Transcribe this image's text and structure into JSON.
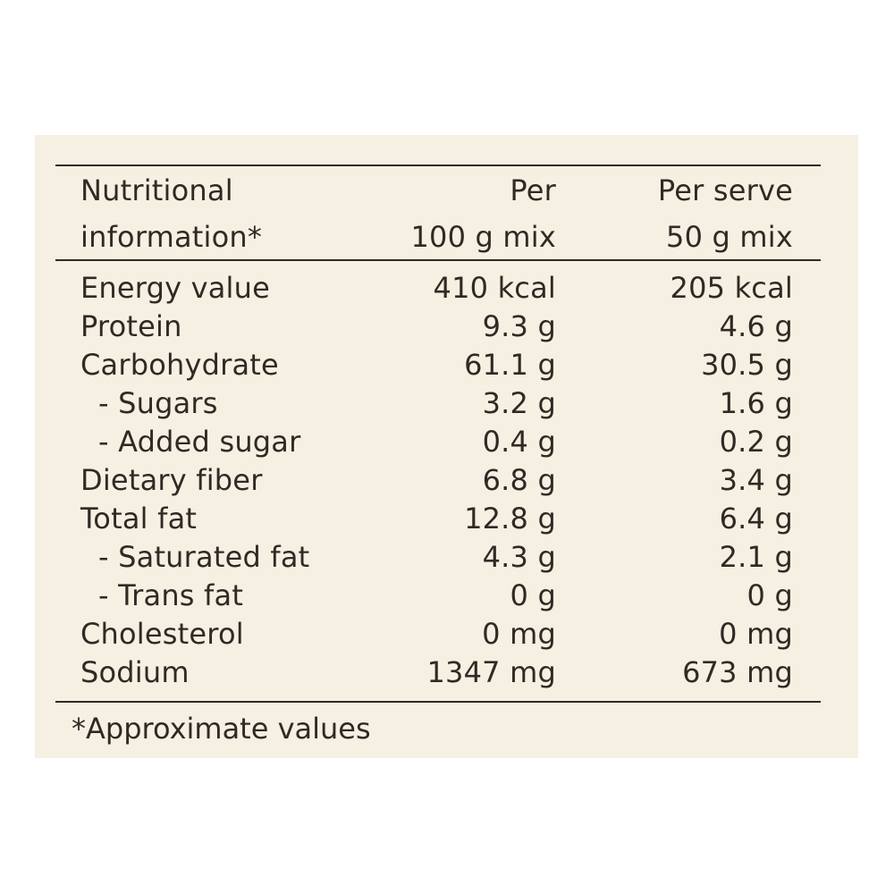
{
  "header": {
    "label_line1": "Nutritional",
    "label_line2": "information*",
    "col1_line1": "Per",
    "col1_line2": "100 g mix",
    "col2_line1": "Per serve",
    "col2_line2": "50 g mix"
  },
  "rows": [
    {
      "label": "Energy value",
      "per100": "410 kcal",
      "perServe": "205 kcal"
    },
    {
      "label": "Protein",
      "per100": "9.3 g",
      "perServe": "4.6 g"
    },
    {
      "label": "Carbohydrate",
      "per100": "61.1 g",
      "perServe": "30.5 g"
    },
    {
      "label": "- Sugars",
      "per100": "3.2 g",
      "perServe": "1.6 g"
    },
    {
      "label": "- Added sugar",
      "per100": "0.4 g",
      "perServe": "0.2 g"
    },
    {
      "label": "Dietary fiber",
      "per100": "6.8 g",
      "perServe": "3.4 g"
    },
    {
      "label": "Total fat",
      "per100": "12.8 g",
      "perServe": "6.4 g"
    },
    {
      "label": "- Saturated fat",
      "per100": "4.3 g",
      "perServe": "2.1 g"
    },
    {
      "label": "- Trans fat",
      "per100": "0 g",
      "perServe": "0 g"
    },
    {
      "label": "Cholesterol",
      "per100": "0 mg",
      "perServe": "0 mg"
    },
    {
      "label": "Sodium",
      "per100": "1347 mg",
      "perServe": "673 mg"
    }
  ],
  "footnote": "*Approximate values"
}
